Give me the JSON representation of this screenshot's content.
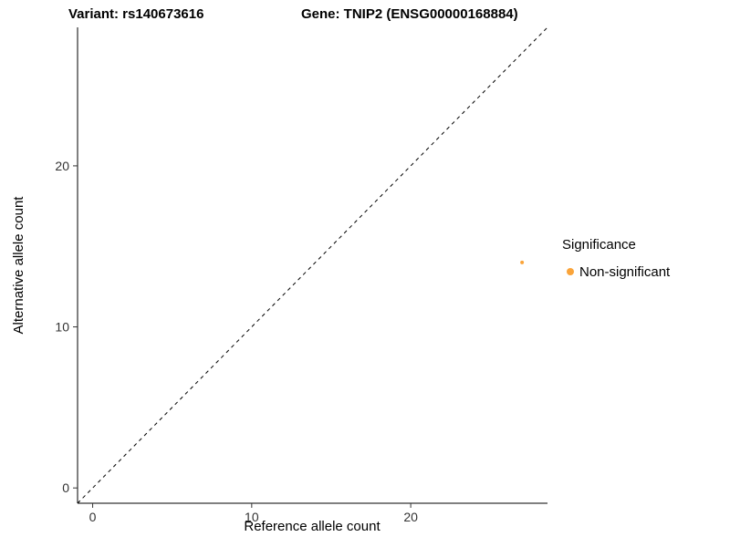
{
  "chart_data": {
    "type": "scatter",
    "titles": {
      "left": "Variant: rs140673616",
      "right": "Gene: TNIP2 (ENSG00000168884)"
    },
    "xlabel": "Reference allele count",
    "ylabel": "Alternative allele count",
    "xlim": [
      -0.95,
      28.6
    ],
    "ylim": [
      -0.95,
      28.6
    ],
    "xticks": [
      0,
      10,
      20
    ],
    "yticks": [
      0,
      10,
      20
    ],
    "grid": false,
    "background": "#ffffff",
    "identity_line": {
      "style": "dashed",
      "color": "#000000",
      "slope": 1,
      "intercept": 0
    },
    "points": [
      {
        "x": 27,
        "y": 14,
        "series": "Non-significant",
        "color": "#FAA43A",
        "radius": 2
      }
    ],
    "legend": {
      "title": "Significance",
      "position": "right",
      "entries": [
        {
          "label": "Non-significant",
          "color": "#FAA43A"
        }
      ]
    }
  }
}
